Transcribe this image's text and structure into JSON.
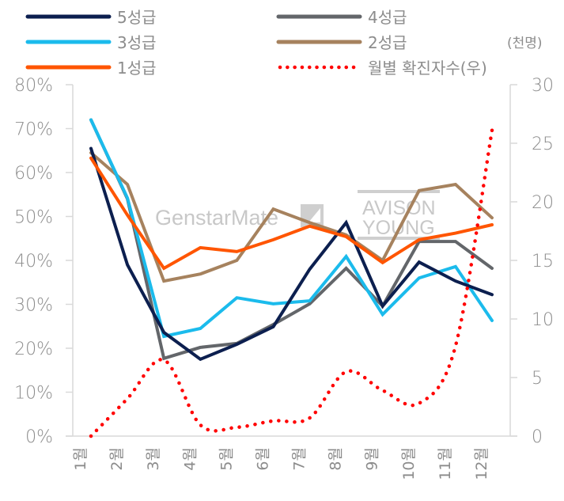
{
  "chart_data": {
    "type": "line",
    "title": "",
    "xlabel": "",
    "ylabel": "",
    "y2label": "(천명)",
    "categories": [
      "1월",
      "2월",
      "3월",
      "4월",
      "5월",
      "6월",
      "7월",
      "8월",
      "9월",
      "10월",
      "11월",
      "12월"
    ],
    "y_axis": {
      "min": 0,
      "max": 80,
      "step": 10,
      "format": "percent",
      "ticks": [
        "0%",
        "10%",
        "20%",
        "30%",
        "40%",
        "50%",
        "60%",
        "70%",
        "80%"
      ]
    },
    "y2_axis": {
      "min": 0,
      "max": 30,
      "step": 5,
      "ticks": [
        "0",
        "5",
        "10",
        "15",
        "20",
        "25",
        "30"
      ]
    },
    "grid": false,
    "legend_position": "top",
    "series": [
      {
        "name": "4성급",
        "axis": "left",
        "color": "#63666a",
        "style": "solid",
        "values": [
          72.0,
          54.0,
          17.7,
          20.2,
          21.1,
          25.4,
          30.1,
          38.2,
          29.6,
          44.3,
          44.3,
          38.2
        ]
      },
      {
        "name": "2성급",
        "axis": "left",
        "color": "#a6825e",
        "style": "solid",
        "values": [
          64.5,
          57.3,
          35.3,
          36.9,
          40.0,
          51.7,
          48.6,
          45.8,
          40.0,
          55.9,
          57.3,
          49.7
        ]
      },
      {
        "name": "3성급",
        "axis": "left",
        "color": "#1bbbec",
        "style": "solid",
        "values": [
          72.0,
          54.2,
          22.7,
          24.5,
          31.5,
          30.1,
          30.8,
          40.9,
          27.7,
          36.0,
          38.6,
          26.3
        ]
      },
      {
        "name": "5성급",
        "axis": "left",
        "color": "#0c1f4f",
        "style": "solid",
        "values": [
          65.5,
          39.0,
          23.6,
          17.5,
          20.9,
          24.9,
          38.0,
          48.6,
          29.6,
          39.6,
          35.3,
          32.2
        ]
      },
      {
        "name": "1성급",
        "axis": "left",
        "color": "#ff5500",
        "style": "solid",
        "values": [
          63.3,
          50.3,
          38.2,
          42.9,
          42.0,
          44.7,
          47.8,
          45.4,
          39.5,
          44.7,
          46.2,
          48.1
        ]
      },
      {
        "name": "월별 확진자수(우)",
        "axis": "right",
        "color": "#ff0000",
        "style": "dotted",
        "values": [
          0.0,
          3.2,
          6.5,
          0.95,
          0.75,
          1.3,
          1.55,
          5.5,
          3.9,
          2.8,
          7.7,
          26.1
        ]
      }
    ],
    "legend": [
      {
        "label": "5성급",
        "color": "#0c1f4f",
        "style": "solid"
      },
      {
        "label": "4성급",
        "color": "#63666a",
        "style": "solid"
      },
      {
        "label": "3성급",
        "color": "#1bbbec",
        "style": "solid"
      },
      {
        "label": "2성급",
        "color": "#a6825e",
        "style": "solid"
      },
      {
        "label": "1성급",
        "color": "#ff5500",
        "style": "solid"
      },
      {
        "label": "월별 확진자수(우)",
        "color": "#ff0000",
        "style": "dotted"
      }
    ]
  },
  "watermarks": {
    "genstar": "GenstarMate",
    "avison_line1": "AVISON",
    "avison_line2": "YOUNG"
  }
}
